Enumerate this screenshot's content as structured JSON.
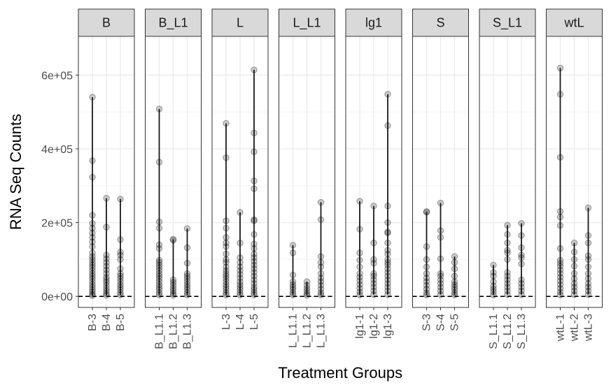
{
  "chart_data": {
    "type": "scatter",
    "title": "",
    "xlabel": "Treatment Groups",
    "ylabel": "RNA Seq Counts",
    "ylim": [
      -30000,
      705000
    ],
    "y_ticks": [
      {
        "value": 0,
        "label": "0e+00"
      },
      {
        "value": 200000,
        "label": "2e+05"
      },
      {
        "value": 400000,
        "label": "4e+05"
      },
      {
        "value": 600000,
        "label": "6e+05"
      }
    ],
    "grid": true,
    "legend": "none",
    "point_color": "#000000",
    "point_alpha": 0.2,
    "hline_value": 0,
    "facets": [
      {
        "name": "B",
        "categories": [
          "B-3",
          "B-4",
          "B-5"
        ],
        "values": [
          [
            540000,
            368000,
            323000,
            220000,
            198000,
            185000,
            172000,
            160000,
            148000,
            135000,
            118000,
            108000,
            100000,
            92000,
            85000,
            78000,
            70000,
            62000,
            55000,
            48000,
            40000,
            32000,
            25000,
            18000,
            12000,
            6000,
            2000
          ],
          [
            266000,
            188000,
            112000,
            102000,
            92000,
            82000,
            72000,
            62000,
            52000,
            45000,
            38000,
            30000,
            22000,
            15000,
            8000,
            3000
          ],
          [
            264000,
            154000,
            120000,
            112000,
            100000,
            75000,
            62000,
            55000,
            48000,
            40000,
            32000,
            25000,
            18000,
            10000,
            4000
          ]
        ]
      },
      {
        "name": "B_L1",
        "categories": [
          "B_L1.1",
          "B_L1.2",
          "B_L1.3"
        ],
        "values": [
          [
            508000,
            364000,
            202000,
            185000,
            140000,
            130000,
            98000,
            92000,
            85000,
            78000,
            70000,
            62000,
            55000,
            48000,
            40000,
            32000,
            25000,
            18000,
            10000,
            4000
          ],
          [
            155000,
            152000,
            45000,
            38000,
            30000,
            22000,
            15000,
            8000,
            3000
          ],
          [
            184000,
            132000,
            90000,
            62000,
            55000,
            48000,
            40000,
            32000,
            25000,
            18000,
            10000,
            4000
          ]
        ]
      },
      {
        "name": "L",
        "categories": [
          "L-3",
          "L-4",
          "L-5"
        ],
        "values": [
          [
            469000,
            376000,
            205000,
            185000,
            160000,
            145000,
            135000,
            115000,
            100000,
            92000,
            80000,
            70000,
            62000,
            55000,
            48000,
            40000,
            32000,
            25000,
            18000,
            10000,
            4000
          ],
          [
            228000,
            145000,
            105000,
            92000,
            80000,
            70000,
            60000,
            50000,
            40000,
            32000,
            25000,
            18000,
            10000,
            4000
          ],
          [
            614000,
            443000,
            392000,
            313000,
            292000,
            208000,
            205000,
            168000,
            142000,
            130000,
            115000,
            105000,
            95000,
            85000,
            75000,
            65000,
            55000,
            45000,
            35000,
            25000,
            18000,
            10000,
            4000
          ]
        ]
      },
      {
        "name": "L_L1",
        "categories": [
          "L_L1.1",
          "L_L1.2",
          "L_L1.3"
        ],
        "values": [
          [
            139000,
            118000,
            58000,
            40000,
            32000,
            25000,
            18000,
            10000,
            4000
          ],
          [
            40000,
            30000,
            22000,
            15000,
            8000,
            3000
          ],
          [
            255000,
            208000,
            108000,
            92000,
            80000,
            62000,
            50000,
            40000,
            30000,
            20000,
            10000,
            4000
          ]
        ]
      },
      {
        "name": "lg1",
        "categories": [
          "lg1-1",
          "lg1-2",
          "lg1-3"
        ],
        "values": [
          [
            258000,
            182000,
            118000,
            98000,
            80000,
            62000,
            52000,
            42000,
            32000,
            22000,
            12000,
            4000
          ],
          [
            245000,
            145000,
            100000,
            90000,
            62000,
            55000,
            45000,
            35000,
            25000,
            15000,
            5000
          ],
          [
            548000,
            463000,
            245000,
            200000,
            175000,
            172000,
            145000,
            125000,
            115000,
            100000,
            92000,
            85000,
            75000,
            65000,
            55000,
            45000,
            35000,
            25000,
            15000,
            5000
          ]
        ]
      },
      {
        "name": "S",
        "categories": [
          "S-3",
          "S-4",
          "S-5"
        ],
        "values": [
          [
            230000,
            228000,
            135000,
            100000,
            80000,
            62000,
            50000,
            40000,
            30000,
            20000,
            10000,
            4000
          ],
          [
            253000,
            178000,
            160000,
            102000,
            62000,
            55000,
            45000,
            35000,
            25000,
            15000,
            5000
          ],
          [
            108000,
            92000,
            75000,
            55000,
            40000,
            32000,
            25000,
            18000,
            10000,
            4000
          ]
        ]
      },
      {
        "name": "S_L1",
        "categories": [
          "S_L1.1",
          "S_L1.2",
          "S_L1.3"
        ],
        "values": [
          [
            85000,
            65000,
            55000,
            40000,
            28000,
            20000,
            12000,
            4000
          ],
          [
            193000,
            168000,
            145000,
            125000,
            118000,
            100000,
            65000,
            55000,
            45000,
            35000,
            25000,
            15000,
            5000
          ],
          [
            198000,
            165000,
            132000,
            112000,
            105000,
            88000,
            45000,
            35000,
            25000,
            15000,
            5000
          ]
        ]
      },
      {
        "name": "wtL",
        "categories": [
          "wtL-1",
          "wtL-2",
          "wtL-3"
        ],
        "values": [
          [
            619000,
            548000,
            377000,
            230000,
            215000,
            192000,
            130000,
            98000,
            90000,
            82000,
            72000,
            62000,
            52000,
            42000,
            32000,
            22000,
            12000,
            4000
          ],
          [
            145000,
            120000,
            100000,
            82000,
            62000,
            48000,
            35000,
            25000,
            15000,
            5000
          ],
          [
            240000,
            165000,
            145000,
            110000,
            100000,
            80000,
            62000,
            48000,
            35000,
            25000,
            15000,
            5000
          ]
        ]
      }
    ]
  }
}
